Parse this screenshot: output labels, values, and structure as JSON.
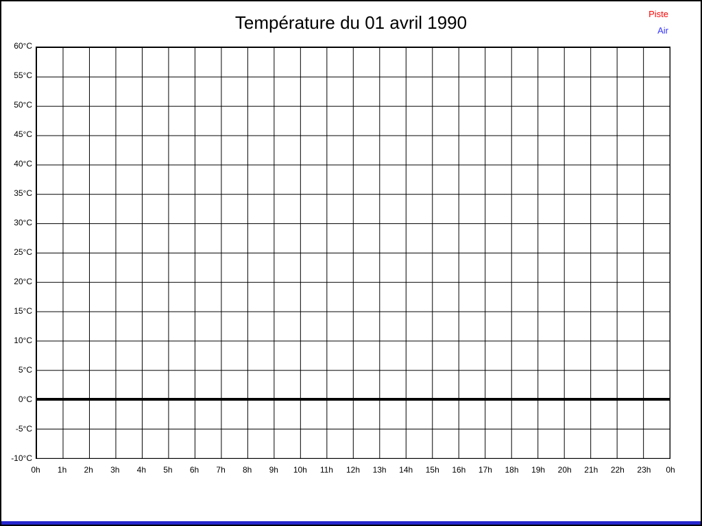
{
  "window": {
    "background": "#ffffff",
    "border_color": "#000000",
    "bottom_bar_color": "#2626cd"
  },
  "chart_data": {
    "type": "line",
    "title": "Température du 01 avril 1990",
    "xlabel": "",
    "ylabel": "",
    "x_tick_labels": [
      "0h",
      "1h",
      "2h",
      "3h",
      "4h",
      "5h",
      "6h",
      "7h",
      "8h",
      "9h",
      "10h",
      "11h",
      "12h",
      "13h",
      "14h",
      "15h",
      "16h",
      "17h",
      "18h",
      "19h",
      "20h",
      "21h",
      "22h",
      "23h",
      "0h"
    ],
    "y_tick_labels": [
      "60°C",
      "55°C",
      "50°C",
      "45°C",
      "40°C",
      "35°C",
      "30°C",
      "25°C",
      "20°C",
      "15°C",
      "10°C",
      "5°C",
      "0°C",
      "-5°C",
      "-10°C"
    ],
    "ylim": [
      -10,
      60
    ],
    "y_step": 5,
    "xlim": [
      0,
      24
    ],
    "x_step": 1,
    "grid": true,
    "gridline_color": "#000000",
    "zero_line": {
      "value": 0,
      "color": "#000000",
      "thick": true
    },
    "legend_position": "top-right",
    "series": [
      {
        "name": "Piste",
        "color": "#ff0000",
        "x": [],
        "values": []
      },
      {
        "name": "Air",
        "color": "#3333ff",
        "x": [],
        "values": []
      }
    ]
  }
}
